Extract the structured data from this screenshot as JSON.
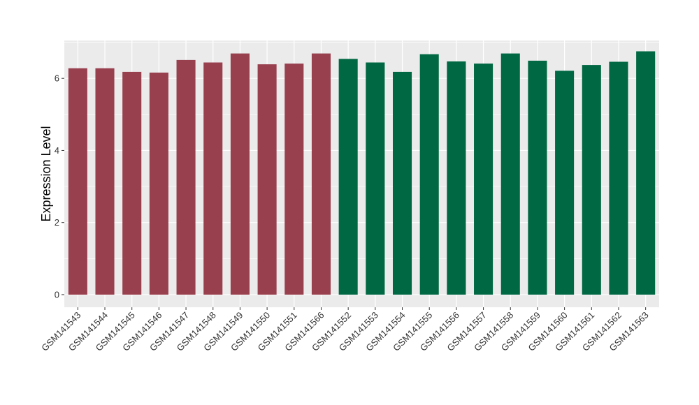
{
  "chart_data": {
    "type": "bar",
    "ylabel": "Expression Level",
    "xlabel": "",
    "ylim": [
      -0.35,
      7.05
    ],
    "yticks": [
      0,
      2,
      4,
      6
    ],
    "grid": true,
    "categories": [
      "GSM141543",
      "GSM141544",
      "GSM141545",
      "GSM141546",
      "GSM141547",
      "GSM141548",
      "GSM141549",
      "GSM141550",
      "GSM141551",
      "GSM141566",
      "GSM141552",
      "GSM141553",
      "GSM141554",
      "GSM141555",
      "GSM141556",
      "GSM141557",
      "GSM141558",
      "GSM141559",
      "GSM141560",
      "GSM141561",
      "GSM141562",
      "GSM141563"
    ],
    "values": [
      6.28,
      6.28,
      6.18,
      6.16,
      6.51,
      6.44,
      6.69,
      6.39,
      6.41,
      6.69,
      6.54,
      6.44,
      6.18,
      6.67,
      6.47,
      6.41,
      6.69,
      6.49,
      6.21,
      6.37,
      6.46,
      6.75
    ],
    "bar_colors": [
      "#99404f",
      "#99404f",
      "#99404f",
      "#99404f",
      "#99404f",
      "#99404f",
      "#99404f",
      "#99404f",
      "#99404f",
      "#99404f",
      "#006843",
      "#006843",
      "#006843",
      "#006843",
      "#006843",
      "#006843",
      "#006843",
      "#006843",
      "#006843",
      "#006843",
      "#006843",
      "#006843"
    ],
    "panel_background": "#ebebeb",
    "grid_color": "#ffffff"
  }
}
